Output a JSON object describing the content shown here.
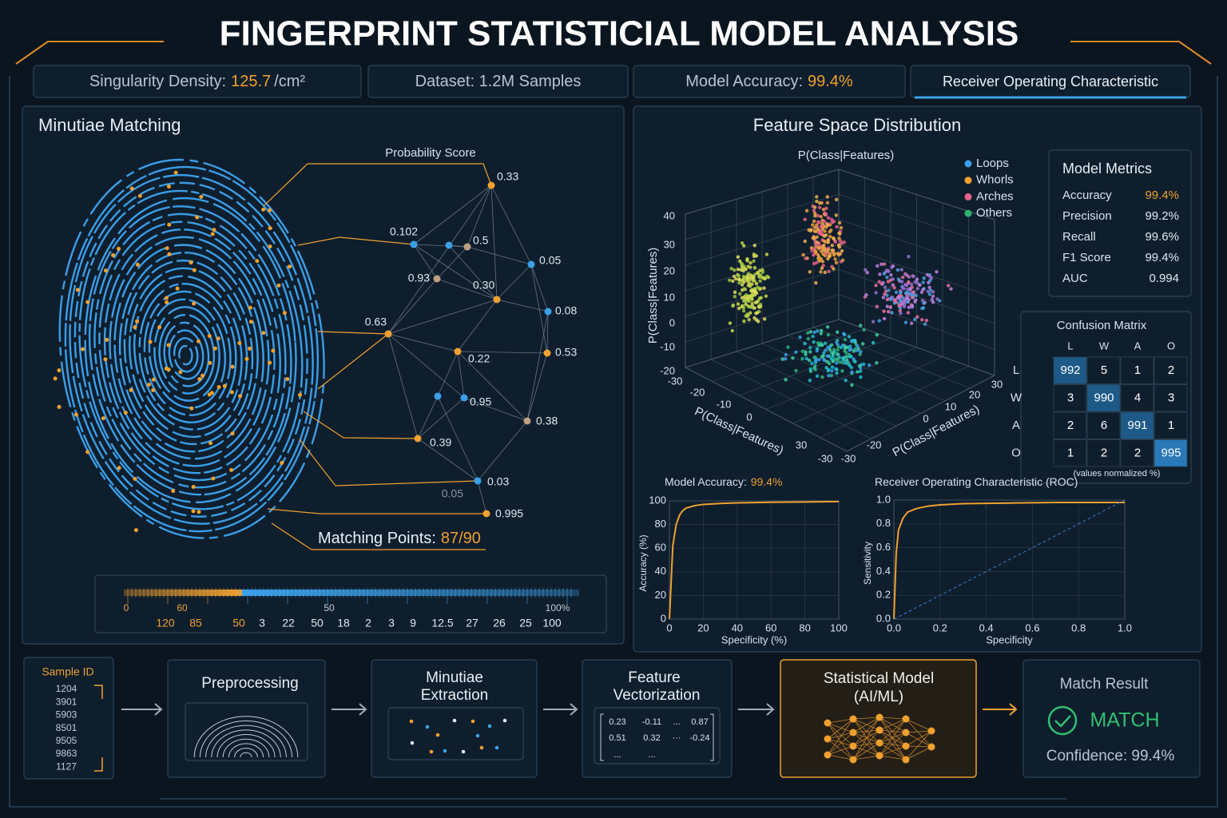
{
  "header": {
    "title": "FINGERPRINT STATISTICIAL MODEL ANALYSIS"
  },
  "stats": [
    {
      "label": "Singularity Density:",
      "value": "125.7",
      "unit": "/cm²"
    },
    {
      "label": "Dataset: 1.2M Samples"
    },
    {
      "label": "Model Accuracy:",
      "value": "99.4%"
    },
    {
      "label": "Receiver Operating Characteristic"
    }
  ],
  "minutiae": {
    "title": "Minutiae Matching",
    "network_title": "Probability Score",
    "nodes": [
      "0.33",
      "0.102",
      "0.5",
      "0.05",
      "0.93",
      "0.30",
      "0.08",
      "0.63",
      "0.53",
      "0.22",
      "0.95",
      "0.38",
      "0.39",
      "0.03",
      "0.05",
      "0.995"
    ],
    "matching_label": "Matching Points:",
    "matching_value": "87/90",
    "scale_top": [
      "0",
      "60",
      "50",
      "100%"
    ],
    "scale_bottom": [
      "120",
      "85",
      "50",
      "3",
      "22",
      "50",
      "18",
      "2",
      "3",
      "9",
      "12.5",
      "27",
      "26",
      "25",
      "100"
    ]
  },
  "feature_space": {
    "title": "Feature Space Distribution",
    "subtitle": "P(Class|Features)",
    "axis_label": "P(Class|Features)",
    "legend": [
      {
        "name": "Loops",
        "color": "#3aa0e8"
      },
      {
        "name": "Whorls",
        "color": "#f0a030"
      },
      {
        "name": "Arches",
        "color": "#e8608a"
      },
      {
        "name": "Others",
        "color": "#30b070"
      }
    ],
    "z_ticks": [
      "40",
      "30",
      "20",
      "10",
      "0",
      "-10",
      "-20"
    ],
    "x_ticks": [
      "-30",
      "-20",
      "-10",
      "0",
      "30",
      "-30"
    ],
    "y_ticks": [
      "-30",
      "-20",
      "0",
      "10",
      "20",
      "30"
    ]
  },
  "metrics": {
    "title": "Model Metrics",
    "rows": [
      [
        "Accuracy",
        "99.4%"
      ],
      [
        "Precision",
        "99.2%"
      ],
      [
        "Recall",
        "99.6%"
      ],
      [
        "F1 Score",
        "99.4%"
      ],
      [
        "AUC",
        "0.994"
      ]
    ]
  },
  "confusion": {
    "title": "Confusion Matrix",
    "columns": [
      "L",
      "W",
      "A",
      "O"
    ],
    "rows": [
      {
        "label": "L",
        "values": [
          992,
          5,
          1,
          2
        ]
      },
      {
        "label": "W",
        "values": [
          3,
          990,
          4,
          3
        ]
      },
      {
        "label": "A",
        "values": [
          2,
          6,
          991,
          1
        ]
      },
      {
        "label": "O",
        "values": [
          1,
          2,
          2,
          995
        ]
      }
    ],
    "note": "(values normalized %)"
  },
  "chart_data": [
    {
      "type": "line",
      "title": "Model Accuracy:",
      "title_value": "99.4%",
      "xlabel": "Specificity (%)",
      "ylabel": "Accuracy (%)",
      "x": [
        0,
        2,
        4,
        6,
        8,
        10,
        15,
        20,
        30,
        40,
        60,
        80,
        100
      ],
      "series": [
        {
          "color": "#f0a030",
          "values": [
            0,
            62,
            80,
            88,
            92,
            94,
            96,
            97,
            97.8,
            98.3,
            98.8,
            99.1,
            99.4
          ]
        }
      ],
      "xlim": [
        0,
        100
      ],
      "ylim": [
        0,
        100
      ],
      "xticks": [
        0,
        20,
        40,
        60,
        80,
        100
      ],
      "yticks": [
        0,
        20,
        40,
        60,
        80,
        100
      ],
      "grid": true
    },
    {
      "type": "line",
      "title": "Receiver Operating Characteristic (ROC)",
      "xlabel": "Specificity",
      "ylabel": "Sensitivity",
      "x": [
        0,
        0.01,
        0.02,
        0.04,
        0.06,
        0.1,
        0.15,
        0.2,
        0.3,
        0.5,
        0.7,
        1
      ],
      "series": [
        {
          "color": "#f0a030",
          "values": [
            0,
            0.55,
            0.75,
            0.85,
            0.9,
            0.93,
            0.95,
            0.96,
            0.97,
            0.975,
            0.98,
            0.98
          ]
        },
        {
          "color": "#3a78c8",
          "dashed": true,
          "values": [
            0,
            0.01,
            0.02,
            0.04,
            0.06,
            0.1,
            0.15,
            0.2,
            0.3,
            0.5,
            0.7,
            1
          ]
        }
      ],
      "xlim": [
        0,
        1
      ],
      "ylim": [
        0,
        1
      ],
      "xticks": [
        {
          "value": 0,
          "label": "0.0"
        },
        0.2,
        0.4,
        0.6,
        0.8,
        {
          "value": 1,
          "label": "1.0"
        }
      ],
      "yticks": [
        {
          "value": 0,
          "label": "0.0"
        },
        0.2,
        0.4,
        0.6,
        0.8,
        {
          "value": 1,
          "label": "1.0"
        }
      ],
      "grid": true
    }
  ],
  "pipeline": {
    "sample_title": "Sample ID",
    "sample_ids": [
      "1204",
      "3901",
      "5903",
      "8501",
      "9505",
      "9863",
      "1127"
    ],
    "preprocessing": "Preprocessing",
    "extraction": [
      "Minutiae",
      "Extraction"
    ],
    "vectorization": [
      "Feature",
      "Vectorization"
    ],
    "vector_rows": [
      [
        "0.23",
        "-0.11",
        "...",
        "0.87"
      ],
      [
        "0.51",
        "0.32",
        "···",
        "-0.24"
      ],
      [
        "...",
        "..."
      ]
    ],
    "model": [
      "Statistical Model",
      "(AI/ML)"
    ],
    "result_title": "Match Result",
    "result": "MATCH",
    "confidence": "Confidence: 99.4%"
  }
}
